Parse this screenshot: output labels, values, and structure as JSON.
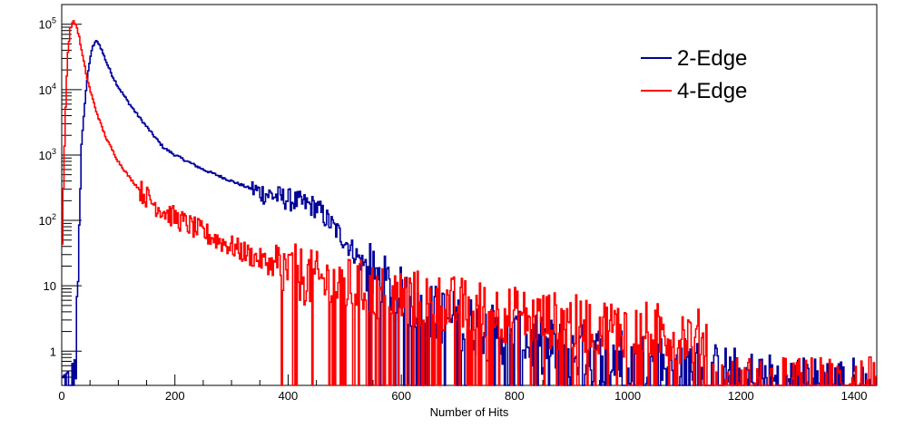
{
  "chart_data": {
    "type": "line",
    "xlabel": "Number of Hits",
    "ylabel": "",
    "y_scale": "log",
    "xlim": [
      0,
      1440
    ],
    "ylim": [
      0.3,
      200000
    ],
    "x_ticks": [
      {
        "value": 0,
        "label": "0"
      },
      {
        "value": 200,
        "label": "200"
      },
      {
        "value": 400,
        "label": "400"
      },
      {
        "value": 600,
        "label": "600"
      },
      {
        "value": 800,
        "label": "800"
      },
      {
        "value": 1000,
        "label": "1000"
      },
      {
        "value": 1200,
        "label": "1200"
      },
      {
        "value": 1400,
        "label": "1400"
      }
    ],
    "y_ticks": [
      {
        "value": 1,
        "base": "1",
        "exp": ""
      },
      {
        "value": 10,
        "base": "10",
        "exp": ""
      },
      {
        "value": 100,
        "base": "10",
        "exp": "2"
      },
      {
        "value": 1000,
        "base": "10",
        "exp": "3"
      },
      {
        "value": 10000,
        "base": "10",
        "exp": "4"
      },
      {
        "value": 100000,
        "base": "10",
        "exp": "5"
      }
    ],
    "grid": false,
    "legend_position": "top-right",
    "series": [
      {
        "name": "2-Edge",
        "color": "#000099",
        "x": [
          0,
          10,
          20,
          25,
          30,
          35,
          40,
          45,
          50,
          55,
          60,
          65,
          70,
          80,
          90,
          100,
          120,
          140,
          160,
          180,
          200,
          250,
          300,
          350,
          400,
          450,
          500,
          550,
          600,
          650,
          700,
          750,
          800,
          900,
          1000,
          1100,
          1200,
          1300,
          1400,
          1440
        ],
        "y": [
          0.3,
          0.3,
          0.3,
          0.6,
          30,
          1500,
          5000,
          14000,
          30000,
          45000,
          55000,
          52000,
          42000,
          25000,
          16000,
          11000,
          6000,
          3500,
          2100,
          1300,
          1000,
          600,
          400,
          270,
          210,
          160,
          50,
          14,
          7,
          4,
          3,
          2,
          1.5,
          1,
          0.8,
          0.6,
          0.4,
          0.3,
          0.3,
          0.3
        ]
      },
      {
        "name": "4-Edge",
        "color": "#ff0000",
        "x": [
          0,
          3,
          6,
          10,
          15,
          20,
          25,
          30,
          35,
          40,
          45,
          50,
          60,
          70,
          80,
          100,
          120,
          140,
          160,
          180,
          200,
          250,
          300,
          350,
          400,
          450,
          500,
          600,
          700,
          800,
          900,
          1000,
          1100,
          1140,
          1145,
          1440
        ],
        "y": [
          10,
          300,
          3000,
          30000,
          85000,
          110000,
          100000,
          70000,
          40000,
          24000,
          15000,
          10000,
          5000,
          2800,
          1700,
          800,
          450,
          280,
          190,
          140,
          110,
          65,
          40,
          25,
          17,
          12,
          10,
          7,
          5,
          3.5,
          2.7,
          2.2,
          1.8,
          1.5,
          0.3,
          0.3
        ]
      }
    ]
  }
}
